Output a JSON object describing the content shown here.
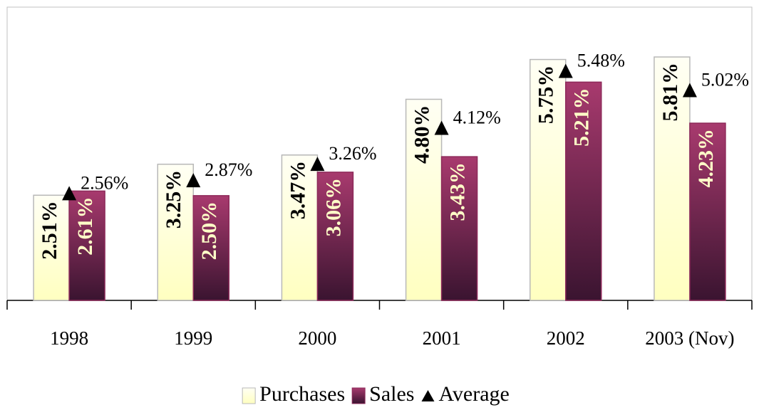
{
  "chart_data": {
    "type": "bar",
    "categories": [
      "1998",
      "1999",
      "2000",
      "2001",
      "2002",
      "2003 (Nov)"
    ],
    "series": [
      {
        "name": "Purchases",
        "type": "bar",
        "color": "#ffffd0",
        "values": [
          2.51,
          3.25,
          3.47,
          4.8,
          5.75,
          5.81
        ],
        "value_labels": [
          "2.51%",
          "3.25%",
          "3.47%",
          "4.80%",
          "5.75%",
          "5.81%"
        ]
      },
      {
        "name": "Sales",
        "type": "bar",
        "color": "#8e2a5a",
        "values": [
          2.61,
          2.5,
          3.06,
          3.43,
          5.21,
          4.23
        ],
        "value_labels": [
          "2.61%",
          "2.50%",
          "3.06%",
          "3.43%",
          "5.21%",
          "4.23%"
        ]
      },
      {
        "name": "Average",
        "type": "scatter",
        "marker": "triangle",
        "color": "#000000",
        "values": [
          2.56,
          2.87,
          3.26,
          4.12,
          5.48,
          5.02
        ],
        "value_labels": [
          "2.56%",
          "2.87%",
          "3.26%",
          "4.12%",
          "5.48%",
          "5.02%"
        ]
      }
    ],
    "ylim": [
      0,
      7
    ],
    "legend": "bottom"
  }
}
